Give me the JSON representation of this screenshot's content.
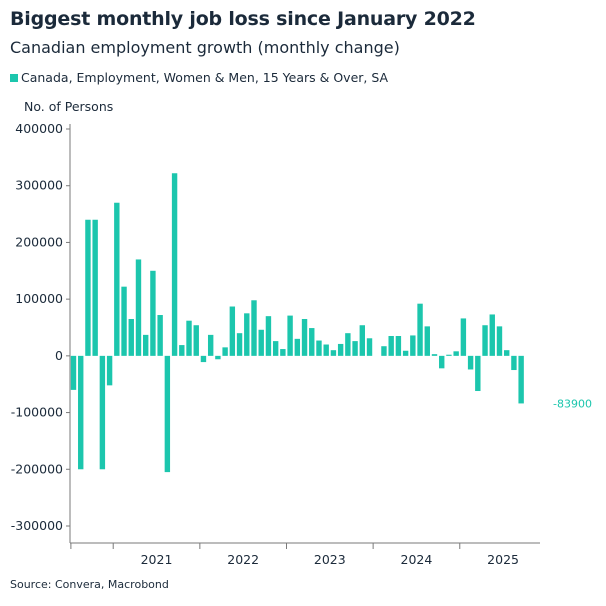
{
  "chart_data": {
    "type": "bar",
    "title": "Biggest monthly job loss since January 2022",
    "subtitle": "Canadian employment growth (monthly change)",
    "ylabel": "No. of Persons",
    "ylim": [
      -330000,
      430000
    ],
    "yticks": [
      400000,
      300000,
      200000,
      100000,
      0,
      -100000,
      -200000,
      -300000
    ],
    "ytick_labels": [
      "400000",
      "300000",
      "200000",
      "100000",
      "0",
      "-100000",
      "-200000",
      "-300000"
    ],
    "x_labels": [
      "2021",
      "2022",
      "2023",
      "2024",
      "2025"
    ],
    "start_month": "2020-07",
    "series": [
      {
        "name": "Canada, Employment, Women & Men, 15 Years & Over, SA",
        "color": "#1cc6ad",
        "values": [
          -60000,
          -200000,
          240000,
          240000,
          -200000,
          -52000,
          270000,
          122000,
          65000,
          170000,
          37000,
          150000,
          72000,
          -205000,
          322000,
          19000,
          62000,
          54000,
          -11000,
          37000,
          -6000,
          15000,
          87000,
          40000,
          75000,
          98000,
          46000,
          70000,
          26000,
          12000,
          71000,
          30000,
          65000,
          49000,
          27000,
          20000,
          10000,
          21000,
          40000,
          26000,
          54000,
          31000,
          0,
          17000,
          35000,
          35000,
          9000,
          36000,
          92000,
          52000,
          3000,
          -22000,
          2000,
          8000,
          66000,
          -24000,
          -62000,
          54000,
          73000,
          52000,
          10000,
          -25000,
          -83900
        ]
      }
    ],
    "last_value_label": "-83900"
  },
  "source": "Source: Convera, Macrobond"
}
